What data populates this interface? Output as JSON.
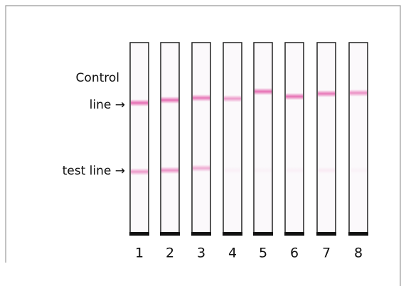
{
  "labels": {
    "control": [
      "Control",
      "line →"
    ],
    "test": "test line →"
  },
  "strips": [
    "1",
    "2",
    "3",
    "4",
    "5",
    "6",
    "7",
    "8"
  ]
}
